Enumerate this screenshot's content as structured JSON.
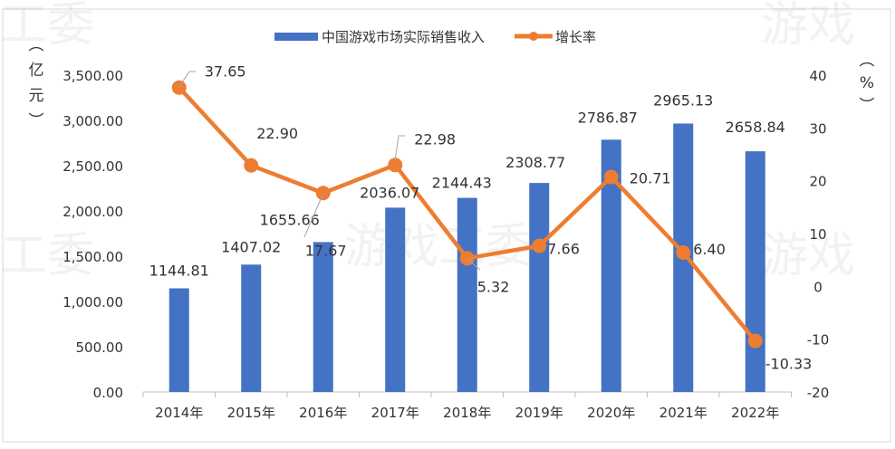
{
  "chart_data": {
    "type": "bar+line",
    "categories": [
      "2014年",
      "2015年",
      "2016年",
      "2017年",
      "2018年",
      "2019年",
      "2020年",
      "2021年",
      "2022年"
    ],
    "series": [
      {
        "name": "中国游戏市场实际销售收入",
        "type": "bar",
        "axis": "left",
        "color": "#4472C4",
        "values": [
          1144.81,
          1407.02,
          1655.66,
          2036.07,
          2144.43,
          2308.77,
          2786.87,
          2965.13,
          2658.84
        ],
        "labels": [
          "1144.81",
          "1407.02",
          "1655.66",
          "2036.07",
          "2144.43",
          "2308.77",
          "2786.87",
          "2965.13",
          "2658.84"
        ]
      },
      {
        "name": "增长率",
        "type": "line",
        "axis": "right",
        "color": "#ED7D31",
        "values": [
          37.65,
          22.9,
          17.67,
          22.98,
          5.32,
          7.66,
          20.71,
          6.4,
          -10.33
        ],
        "labels": [
          "37.65",
          "22.90",
          "17.67",
          "22.98",
          "5.32",
          "7.66",
          "20.71",
          "6.40",
          "-10.33"
        ]
      }
    ],
    "left_axis": {
      "label": "（亿元）",
      "ylim": [
        0,
        3500
      ],
      "ticks": [
        "0.00",
        "500.00",
        "1,000.00",
        "1,500.00",
        "2,000.00",
        "2,500.00",
        "3,000.00",
        "3,500.00"
      ]
    },
    "right_axis": {
      "label": "（%）",
      "ylim": [
        -20,
        40
      ],
      "ticks": [
        "-20",
        "-10",
        "0",
        "10",
        "20",
        "30",
        "40"
      ]
    },
    "legend_position": "top",
    "grid": false
  },
  "watermark": "游戏工委"
}
